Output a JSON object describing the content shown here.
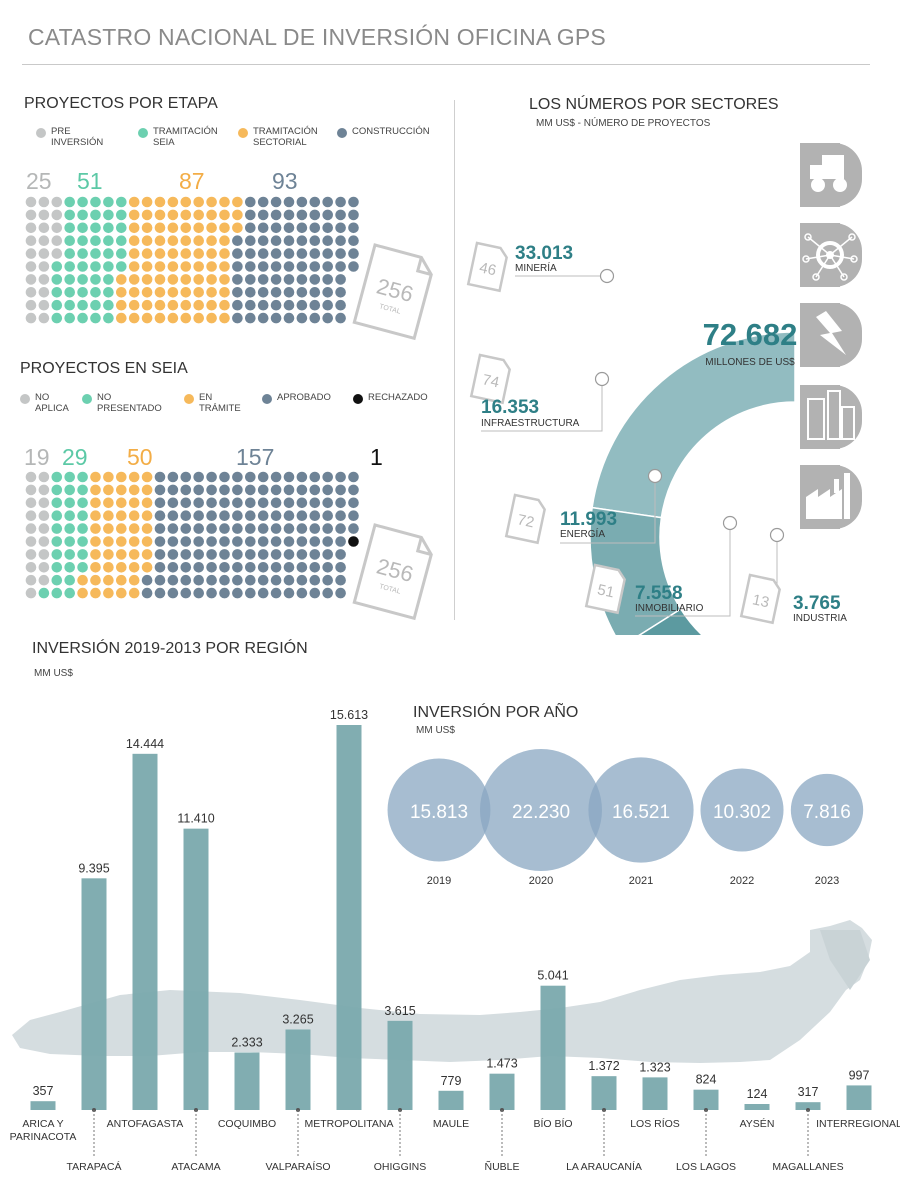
{
  "header": {
    "title": "CATASTRO NACIONAL DE INVERSIÓN OFICINA GPS"
  },
  "etapa": {
    "title": "PROYECTOS POR ETAPA",
    "legend": [
      {
        "label": "PRE\nINVERSIÓN",
        "color": "#c4c6c6"
      },
      {
        "label": "TRAMITACIÓN\nSEIA",
        "color": "#6cd0b0"
      },
      {
        "label": "TRAMITACIÓN\nSECTORIAL",
        "color": "#f6b95b"
      },
      {
        "label": "CONSTRUCCIÓN",
        "color": "#6e8396"
      }
    ],
    "counts": [
      "25",
      "51",
      "87",
      "93"
    ],
    "total": "256",
    "total_label": "TOTAL"
  },
  "seia": {
    "title": "PROYECTOS EN SEIA",
    "legend": [
      {
        "label": "NO\nAPLICA",
        "color": "#c4c6c6"
      },
      {
        "label": "NO\nPRESENTADO",
        "color": "#6cd0b0"
      },
      {
        "label": "EN\nTRÁMITE",
        "color": "#f6b95b"
      },
      {
        "label": "APROBADO",
        "color": "#6e8396"
      },
      {
        "label": "RECHAZADO",
        "color": "#111111"
      }
    ],
    "counts": [
      "19",
      "29",
      "50",
      "157",
      "1"
    ],
    "total": "256",
    "total_label": "TOTAL"
  },
  "sectores": {
    "title": "LOS NÚMEROS POR SECTORES",
    "subtitle": "MM US$ - NÚMERO DE PROYECTOS",
    "total_value": "72.682",
    "total_label": "MILLONES DE US$",
    "icons": [
      "mining-truck-icon",
      "network-gear-icon",
      "lightning-icon",
      "buildings-icon",
      "factory-icon"
    ]
  },
  "region": {
    "title": "INVERSIÓN 2019-2013 POR REGIÓN",
    "subtitle": "MM US$"
  },
  "anio": {
    "title": "INVERSIÓN POR AÑO",
    "subtitle": "MM US$"
  },
  "colors": {
    "bar": "#7aa9ad",
    "circle": "#8aa7c2",
    "teal_text": "#2e7f86",
    "map": "#d5dde0"
  },
  "chart_data": [
    {
      "type": "pie",
      "title": "LOS NÚMEROS POR SECTORES",
      "subtitle": "MM US$ - NÚMERO DE PROYECTOS",
      "categories": [
        "MINERÍA",
        "INFRAESTRUCTURA",
        "ENERGÍA",
        "INMOBILIARIO",
        "INDUSTRIA"
      ],
      "values": [
        33013,
        16353,
        11993,
        7558,
        3765
      ],
      "value_labels": [
        "33.013",
        "16.353",
        "11.993",
        "7.558",
        "3.765"
      ],
      "projects": [
        46,
        74,
        72,
        51,
        13
      ],
      "colors": [
        "#92bcc1",
        "#7aacb1",
        "#5c9aa0",
        "#43878e",
        "#177a80"
      ]
    },
    {
      "type": "bar",
      "title": "INVERSIÓN 2019-2013 POR REGIÓN",
      "ylabel": "MM US$",
      "categories": [
        "ARICA Y PARINACOTA",
        "TARAPACÁ",
        "ANTOFAGASTA",
        "ATACAMA",
        "COQUIMBO",
        "VALPARAÍSO",
        "METROPOLITANA",
        "OHIGGINS",
        "MAULE",
        "ÑUBLE",
        "BÍO BÍO",
        "LA ARAUCANÍA",
        "LOS RÍOS",
        "LOS LAGOS",
        "AYSÉN",
        "MAGALLANES",
        "INTERREGIONAL"
      ],
      "values": [
        357,
        9395,
        14444,
        11410,
        2333,
        3265,
        15613,
        3615,
        779,
        1473,
        5041,
        1372,
        1323,
        824,
        124,
        317,
        997
      ],
      "value_labels": [
        "357",
        "9.395",
        "14.444",
        "11.410",
        "2.333",
        "3.265",
        "15.613",
        "3.615",
        "779",
        "1.473",
        "5.041",
        "1.372",
        "1.323",
        "824",
        "124",
        "317",
        "997"
      ]
    },
    {
      "type": "scatter",
      "title": "INVERSIÓN POR AÑO",
      "ylabel": "MM US$",
      "categories": [
        "2019",
        "2020",
        "2021",
        "2022",
        "2023"
      ],
      "values": [
        15813,
        22230,
        16521,
        10302,
        7816
      ],
      "value_labels": [
        "15.813",
        "22.230",
        "16.521",
        "10.302",
        "7.816"
      ]
    }
  ]
}
